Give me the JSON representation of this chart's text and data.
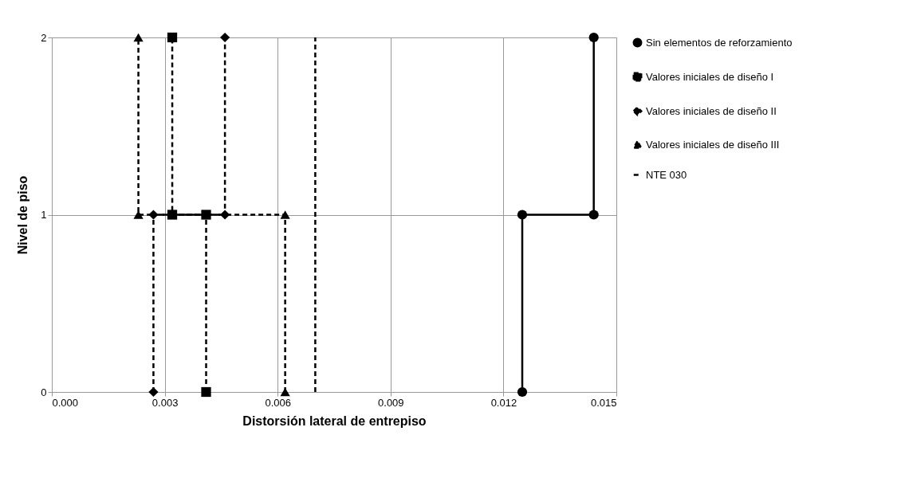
{
  "chart_data": {
    "type": "line",
    "xlabel": "Distorsión lateral de entrepiso",
    "ylabel": "Nivel de piso",
    "xlim": [
      0,
      0.015
    ],
    "xticks": [
      {
        "value": 0,
        "label": "0.000"
      },
      {
        "value": 0.003,
        "label": "0.003"
      },
      {
        "value": 0.006,
        "label": "0.006"
      },
      {
        "value": 0.009,
        "label": "0.009"
      },
      {
        "value": 0.012,
        "label": "0.012"
      },
      {
        "value": 0.015,
        "label": "0.015"
      }
    ],
    "ylim": [
      0,
      2
    ],
    "yticks": [
      0,
      1,
      2
    ],
    "grid": true,
    "legend": "right",
    "series": [
      {
        "name": "Sin elementos de reforzamiento",
        "color": "#000000",
        "marker": "circle",
        "line_style": "solid",
        "x": [
          0.0125,
          0.0125,
          0.0144,
          0.0144
        ],
        "values": [
          0,
          1,
          1,
          2
        ]
      },
      {
        "name": "Valores iniciales de diseño I",
        "color": "#000000",
        "marker": "square",
        "line_style": "dashed",
        "x": [
          0.0041,
          0.0041,
          0.0032,
          0.0032
        ],
        "values": [
          0,
          1,
          1,
          2
        ]
      },
      {
        "name": "Valores iniciales de diseño II",
        "color": "#000000",
        "marker": "diamond",
        "line_style": "dashed",
        "x": [
          0.0027,
          0.0027,
          0.0046,
          0.0046
        ],
        "values": [
          0,
          1,
          1,
          2
        ]
      },
      {
        "name": "Valores iniciales de diseño III",
        "color": "#000000",
        "marker": "triangle",
        "line_style": "dashed",
        "x": [
          0.0062,
          0.0062,
          0.0023,
          0.0023
        ],
        "values": [
          0,
          1,
          1,
          2
        ]
      },
      {
        "name": "NTE 030",
        "color": "#000000",
        "marker": "none",
        "line_style": "dashed",
        "x": [
          0.007,
          0.007
        ],
        "values": [
          0,
          2
        ]
      }
    ]
  }
}
